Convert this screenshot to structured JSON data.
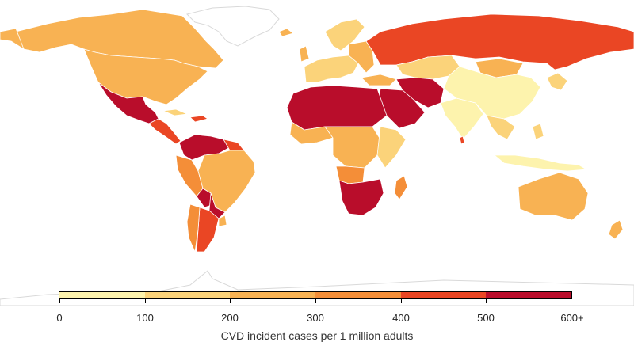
{
  "legend": {
    "title": "CVD incident cases per 1 million adults",
    "ticks": [
      "0",
      "100",
      "200",
      "300",
      "400",
      "500",
      "600+"
    ],
    "bins": [
      {
        "range": "0-100",
        "color": "#ffffb2"
      },
      {
        "range": "100-200",
        "color": "#fed976"
      },
      {
        "range": "200-300",
        "color": "#feb24c"
      },
      {
        "range": "300-400",
        "color": "#fd8d3c"
      },
      {
        "range": "400-500",
        "color": "#f03b20"
      },
      {
        "range": "500-600+",
        "color": "#bd0026"
      }
    ]
  },
  "colors": {
    "bin0": "#fdf3ad",
    "bin1": "#fbd37a",
    "bin2": "#f8b253",
    "bin3": "#f48e38",
    "bin4": "#ea4624",
    "bin5": "#b90d2b",
    "no_data": "#ffffff",
    "border": "#d9d9d9"
  }
}
